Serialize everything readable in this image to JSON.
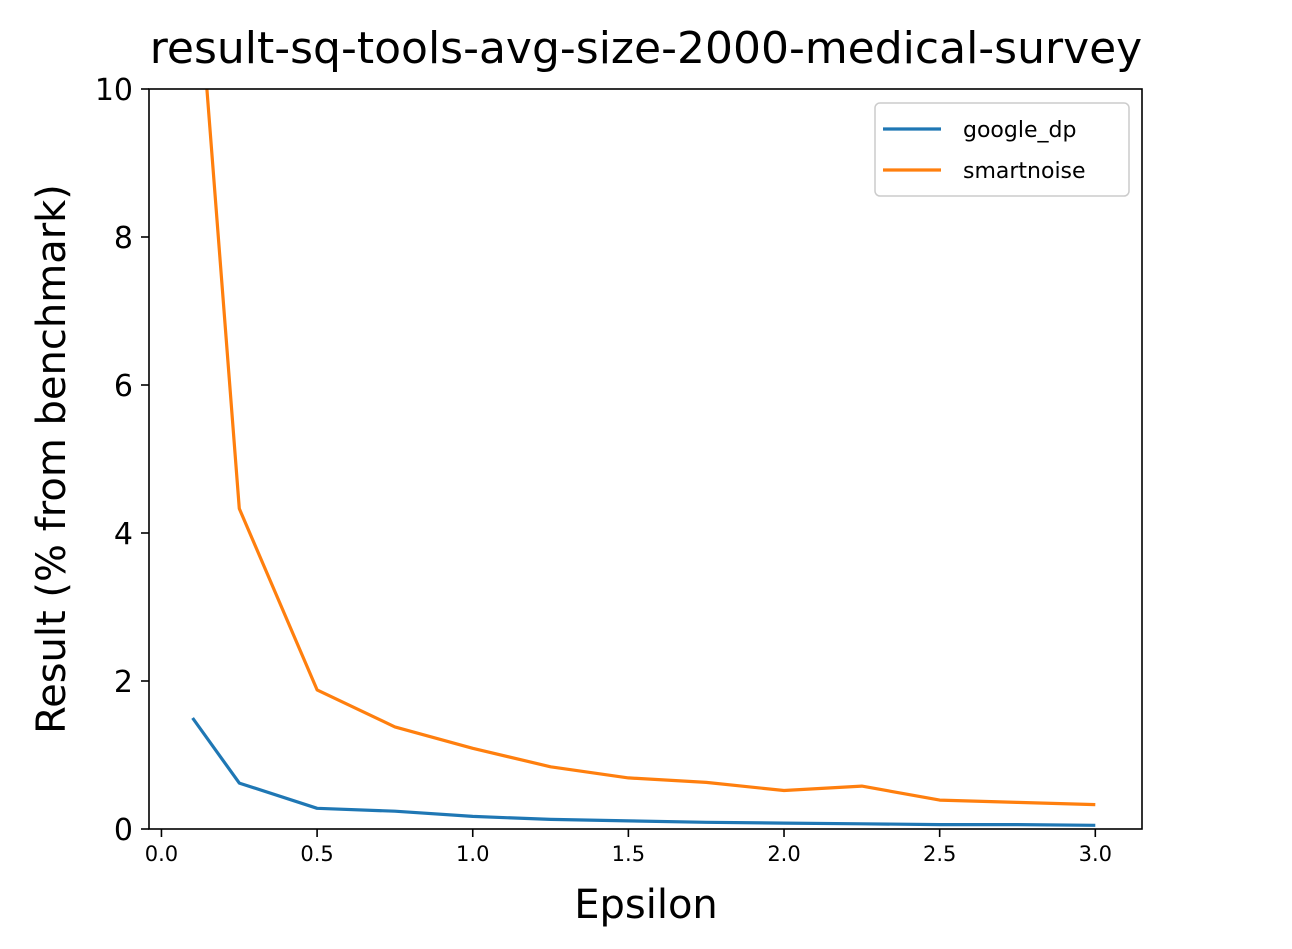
{
  "chart_data": {
    "type": "line",
    "title": "result-sq-tools-avg-size-2000-medical-survey",
    "xlabel": "Epsilon",
    "ylabel": "Result (% from benchmark)",
    "xlim": [
      -0.04,
      3.15
    ],
    "ylim": [
      0,
      10
    ],
    "xticks": [
      0.0,
      0.5,
      1.0,
      1.5,
      2.0,
      2.5,
      3.0
    ],
    "xtick_labels": [
      "0.0",
      "0.5",
      "1.0",
      "1.5",
      "2.0",
      "2.5",
      "3.0"
    ],
    "yticks": [
      0,
      2,
      4,
      6,
      8,
      10
    ],
    "ytick_labels": [
      "0",
      "2",
      "4",
      "6",
      "8",
      "10"
    ],
    "grid": false,
    "legend_position": "top-right",
    "series": [
      {
        "name": "google_dp",
        "color": "#1f77b4",
        "x": [
          0.1,
          0.25,
          0.5,
          0.75,
          1.0,
          1.25,
          1.5,
          1.75,
          2.0,
          2.25,
          2.5,
          2.75,
          3.0
        ],
        "values": [
          1.5,
          0.62,
          0.28,
          0.24,
          0.17,
          0.13,
          0.11,
          0.09,
          0.08,
          0.07,
          0.06,
          0.06,
          0.05
        ]
      },
      {
        "name": "smartnoise",
        "color": "#ff7f0e",
        "x": [
          0.1,
          0.25,
          0.5,
          0.75,
          1.0,
          1.25,
          1.5,
          1.75,
          2.0,
          2.25,
          2.5,
          2.75,
          3.0
        ],
        "values": [
          12.5,
          4.33,
          1.88,
          1.38,
          1.09,
          0.84,
          0.69,
          0.63,
          0.52,
          0.58,
          0.39,
          0.36,
          0.33
        ]
      }
    ]
  }
}
